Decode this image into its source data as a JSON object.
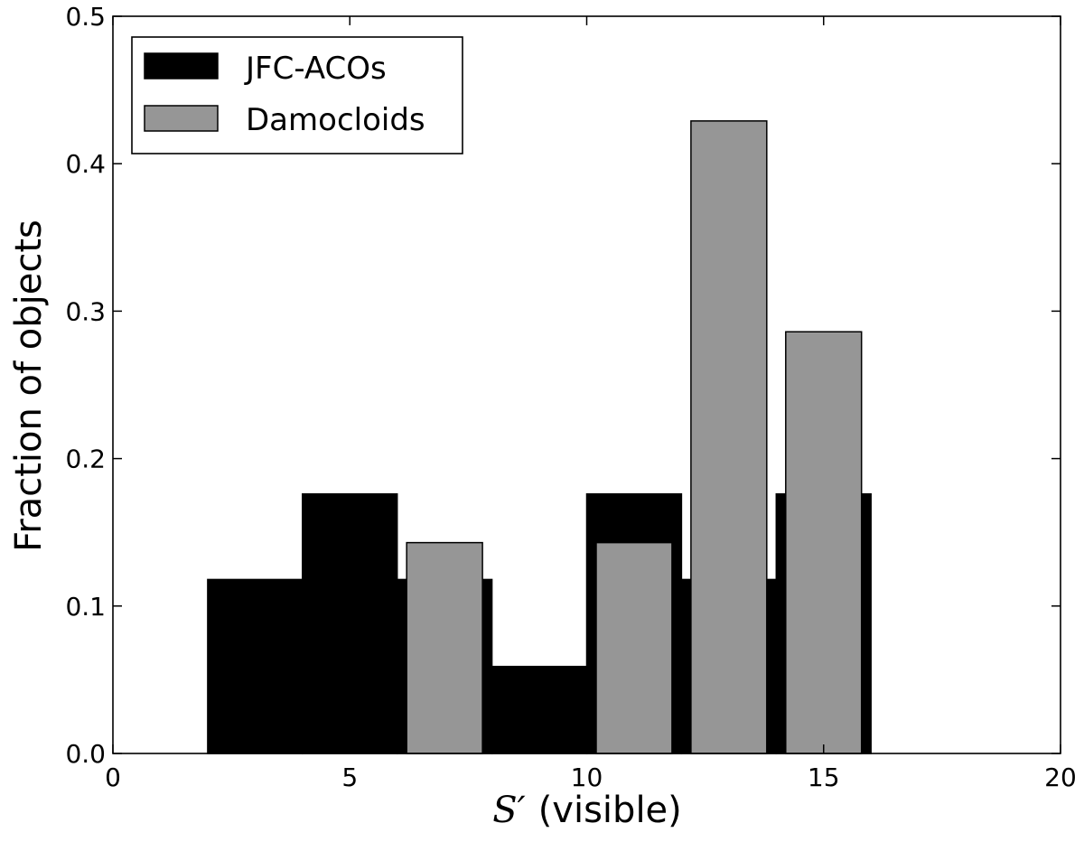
{
  "chart_data": {
    "type": "bar",
    "xlabel_symbol": "S′",
    "xlabel_text": "(visible)",
    "ylabel": "Fraction of objects",
    "xlim": [
      0,
      20
    ],
    "ylim": [
      0,
      0.5
    ],
    "xticks": [
      0,
      5,
      10,
      15,
      20
    ],
    "yticks": [
      0.0,
      0.1,
      0.2,
      0.3,
      0.4,
      0.5
    ],
    "xtick_labels": [
      "0",
      "5",
      "10",
      "15",
      "20"
    ],
    "ytick_labels": [
      "0.0",
      "0.1",
      "0.2",
      "0.3",
      "0.4",
      "0.5"
    ],
    "legend_position": "top-left",
    "series": [
      {
        "name": "JFC-ACOs",
        "color": "#000000",
        "bins": [
          {
            "x0": 2,
            "x1": 4,
            "value": 0.118
          },
          {
            "x0": 4,
            "x1": 6,
            "value": 0.176
          },
          {
            "x0": 6,
            "x1": 8,
            "value": 0.118
          },
          {
            "x0": 8,
            "x1": 10,
            "value": 0.059
          },
          {
            "x0": 10,
            "x1": 12,
            "value": 0.176
          },
          {
            "x0": 12,
            "x1": 14,
            "value": 0.118
          },
          {
            "x0": 14,
            "x1": 16,
            "value": 0.176
          }
        ]
      },
      {
        "name": "Damocloids",
        "color": "#969696",
        "bins": [
          {
            "x0": 6.2,
            "x1": 7.8,
            "value": 0.143
          },
          {
            "x0": 10.2,
            "x1": 11.8,
            "value": 0.143
          },
          {
            "x0": 12.2,
            "x1": 13.8,
            "value": 0.429
          },
          {
            "x0": 14.2,
            "x1": 15.8,
            "value": 0.286
          }
        ]
      }
    ]
  }
}
